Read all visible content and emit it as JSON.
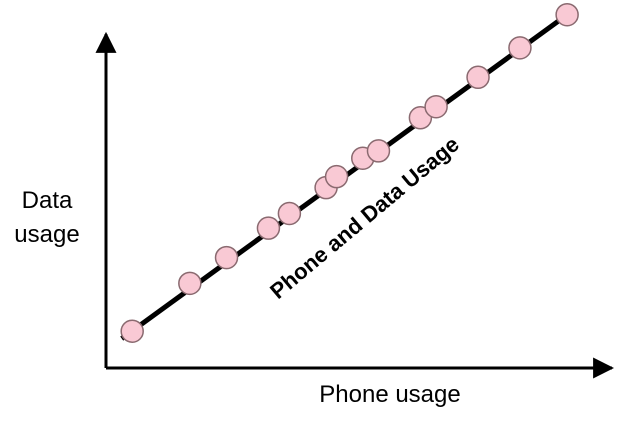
{
  "chart_data": {
    "type": "scatter",
    "title": "",
    "xlabel": "Phone usage",
    "ylabel_lines": [
      "Data",
      "usage"
    ],
    "annotation": "Phone and Data Usage",
    "grid": false,
    "ticks": false,
    "point_color": "#f9c9d4",
    "point_stroke": "#8a6a70",
    "line_color": "#000000",
    "trend_line": true,
    "points": [
      {
        "x": 0.05,
        "y": 0.1
      },
      {
        "x": 0.16,
        "y": 0.23
      },
      {
        "x": 0.23,
        "y": 0.3
      },
      {
        "x": 0.31,
        "y": 0.38
      },
      {
        "x": 0.35,
        "y": 0.42
      },
      {
        "x": 0.42,
        "y": 0.49
      },
      {
        "x": 0.44,
        "y": 0.52
      },
      {
        "x": 0.49,
        "y": 0.57
      },
      {
        "x": 0.52,
        "y": 0.59
      },
      {
        "x": 0.6,
        "y": 0.68
      },
      {
        "x": 0.63,
        "y": 0.71
      },
      {
        "x": 0.71,
        "y": 0.79
      },
      {
        "x": 0.79,
        "y": 0.87
      },
      {
        "x": 0.88,
        "y": 0.96
      }
    ],
    "trend": {
      "x_start": 0.03,
      "y_start": 0.08,
      "x_end": 0.88,
      "y_end": 0.96
    },
    "xlim": [
      0,
      1
    ],
    "ylim": [
      0,
      1
    ]
  }
}
